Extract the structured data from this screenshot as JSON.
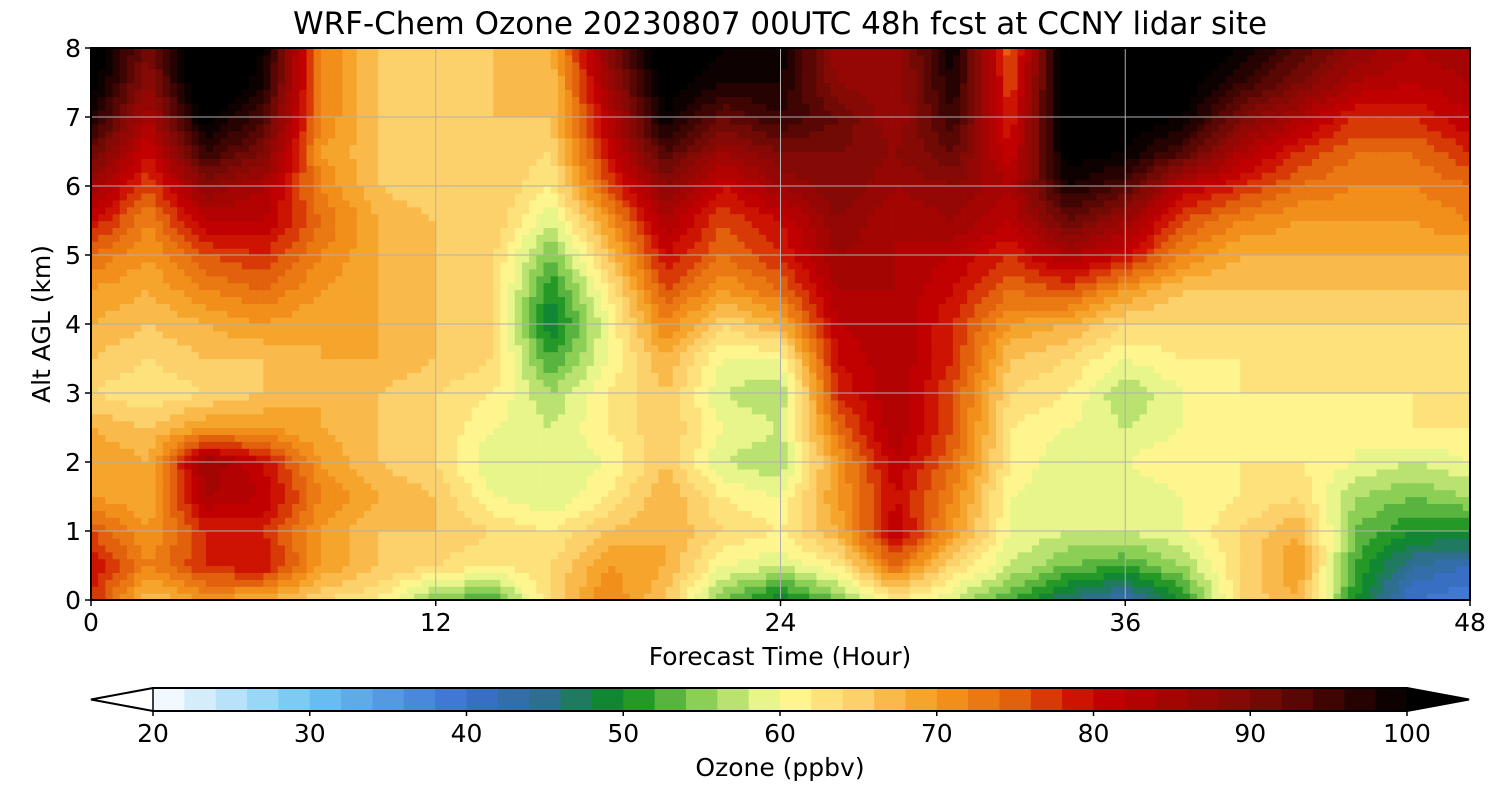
{
  "chart_data": {
    "type": "heatmap",
    "title": "WRF-Chem Ozone  20230807 00UTC 48h fcst at CCNY lidar site",
    "xlabel": "Forecast Time (Hour)",
    "ylabel": "Alt AGL (km)",
    "xlim": [
      0,
      48
    ],
    "ylim": [
      0,
      8
    ],
    "xticks": [
      "0",
      "12",
      "24",
      "36",
      "48"
    ],
    "yticks": [
      "0",
      "1",
      "2",
      "3",
      "4",
      "5",
      "6",
      "7",
      "8"
    ],
    "grid": true,
    "z_units": "ppbv",
    "x": [
      0,
      2,
      4,
      6,
      8,
      10,
      12,
      14,
      16,
      18,
      20,
      22,
      24,
      26,
      28,
      30,
      32,
      34,
      36,
      38,
      40,
      42,
      44,
      46,
      48
    ],
    "y": [
      0,
      0.5,
      1,
      1.5,
      2,
      2.5,
      3,
      3.5,
      4,
      4.5,
      5,
      5.5,
      6,
      6.5,
      7,
      7.5,
      8
    ],
    "z": [
      [
        78,
        66,
        70,
        68,
        64,
        62,
        54,
        52,
        64,
        72,
        66,
        54,
        48,
        54,
        62,
        58,
        52,
        46,
        42,
        50,
        64,
        68,
        50,
        40,
        38
      ],
      [
        80,
        72,
        78,
        80,
        70,
        66,
        64,
        62,
        64,
        70,
        68,
        60,
        58,
        62,
        74,
        64,
        58,
        54,
        52,
        56,
        64,
        70,
        52,
        44,
        42
      ],
      [
        76,
        70,
        78,
        78,
        70,
        66,
        66,
        64,
        62,
        66,
        68,
        64,
        62,
        68,
        82,
        70,
        60,
        58,
        58,
        60,
        64,
        68,
        54,
        50,
        50
      ],
      [
        70,
        68,
        84,
        82,
        72,
        68,
        66,
        60,
        58,
        62,
        68,
        62,
        60,
        70,
        80,
        72,
        60,
        58,
        58,
        60,
        62,
        64,
        56,
        54,
        56
      ],
      [
        70,
        68,
        86,
        80,
        70,
        66,
        64,
        58,
        58,
        60,
        66,
        58,
        56,
        70,
        82,
        74,
        62,
        58,
        60,
        62,
        62,
        62,
        60,
        58,
        60
      ],
      [
        68,
        66,
        70,
        70,
        68,
        66,
        64,
        60,
        58,
        62,
        66,
        60,
        58,
        74,
        84,
        76,
        62,
        60,
        58,
        60,
        62,
        60,
        60,
        62,
        62
      ],
      [
        64,
        62,
        64,
        66,
        68,
        66,
        64,
        62,
        56,
        62,
        66,
        58,
        56,
        78,
        84,
        76,
        64,
        62,
        56,
        60,
        62,
        62,
        62,
        62,
        62
      ],
      [
        66,
        64,
        66,
        66,
        68,
        68,
        66,
        64,
        52,
        60,
        68,
        60,
        60,
        80,
        84,
        78,
        66,
        64,
        60,
        62,
        62,
        62,
        62,
        62,
        62
      ],
      [
        68,
        66,
        68,
        70,
        68,
        68,
        66,
        64,
        48,
        60,
        72,
        64,
        68,
        82,
        84,
        78,
        70,
        68,
        64,
        64,
        64,
        64,
        64,
        64,
        64
      ],
      [
        70,
        68,
        72,
        74,
        70,
        68,
        66,
        64,
        50,
        62,
        76,
        70,
        74,
        84,
        84,
        80,
        74,
        76,
        70,
        66,
        66,
        66,
        66,
        66,
        66
      ],
      [
        74,
        70,
        76,
        78,
        72,
        68,
        66,
        64,
        54,
        66,
        80,
        74,
        78,
        86,
        84,
        82,
        78,
        84,
        80,
        72,
        68,
        68,
        68,
        68,
        68
      ],
      [
        80,
        72,
        82,
        82,
        74,
        68,
        66,
        66,
        58,
        70,
        84,
        76,
        80,
        88,
        84,
        86,
        82,
        92,
        86,
        76,
        72,
        70,
        70,
        70,
        72
      ],
      [
        86,
        76,
        88,
        84,
        72,
        66,
        64,
        66,
        62,
        76,
        88,
        80,
        86,
        90,
        86,
        88,
        84,
        98,
        94,
        82,
        78,
        74,
        72,
        72,
        74
      ],
      [
        92,
        80,
        96,
        90,
        70,
        66,
        64,
        66,
        64,
        80,
        94,
        86,
        90,
        90,
        88,
        92,
        80,
        102,
        100,
        94,
        84,
        78,
        74,
        74,
        78
      ],
      [
        98,
        84,
        102,
        94,
        72,
        66,
        64,
        66,
        66,
        82,
        100,
        92,
        96,
        92,
        86,
        96,
        78,
        104,
        102,
        100,
        90,
        84,
        78,
        78,
        82
      ],
      [
        102,
        88,
        106,
        98,
        72,
        66,
        64,
        66,
        66,
        86,
        102,
        98,
        98,
        88,
        86,
        98,
        76,
        104,
        104,
        102,
        96,
        90,
        84,
        82,
        84
      ],
      [
        104,
        90,
        108,
        100,
        72,
        66,
        64,
        66,
        68,
        88,
        104,
        100,
        100,
        86,
        86,
        100,
        74,
        104,
        104,
        104,
        100,
        94,
        88,
        84,
        86
      ]
    ],
    "colorbar": {
      "label": "Ozone  (ppbv)",
      "min": 20,
      "max": 100,
      "ticks": [
        "20",
        "30",
        "40",
        "50",
        "60",
        "70",
        "80",
        "90",
        "100"
      ],
      "extend": "both",
      "stops": [
        [
          20,
          "#ffffff"
        ],
        [
          30,
          "#6ec4f2"
        ],
        [
          40,
          "#3b6fcf"
        ],
        [
          45,
          "#2e6e8e"
        ],
        [
          50,
          "#0a8c1c"
        ],
        [
          55,
          "#8ccf55"
        ],
        [
          60,
          "#fefe98"
        ],
        [
          65,
          "#fcd06a"
        ],
        [
          70,
          "#f59a1d"
        ],
        [
          75,
          "#e2610c"
        ],
        [
          80,
          "#c80000"
        ],
        [
          90,
          "#7d0a06"
        ],
        [
          100,
          "#000000"
        ]
      ]
    }
  }
}
